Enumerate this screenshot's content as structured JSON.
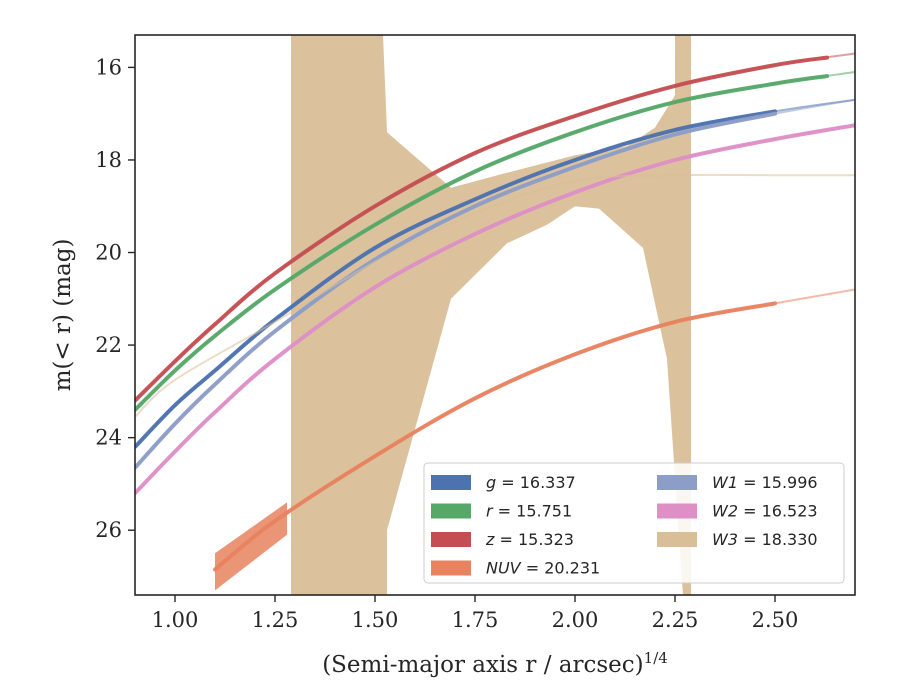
{
  "chart_data": {
    "type": "line",
    "xlabel": "(Semi-major axis r / arcsec)",
    "xlabel_sup": "1/4",
    "ylabel": "m(< r) (mag)",
    "xlim": [
      0.9,
      2.7
    ],
    "ylim": [
      27.4,
      15.3
    ],
    "y_inverted": true,
    "xticks": [
      1.0,
      1.25,
      1.5,
      1.75,
      2.0,
      2.25,
      2.5
    ],
    "xtick_labels": [
      "1.00",
      "1.25",
      "1.50",
      "1.75",
      "2.00",
      "2.25",
      "2.50"
    ],
    "yticks": [
      16,
      18,
      20,
      22,
      24,
      26
    ],
    "ytick_labels": [
      "16",
      "18",
      "20",
      "22",
      "24",
      "26"
    ],
    "grid": false,
    "legend": {
      "placement": "lower-right",
      "columns": 2,
      "entries": [
        {
          "label": "g = 16.337",
          "symbol": "g",
          "value": "16.337",
          "color": "#4c72b0"
        },
        {
          "label": "r = 15.751",
          "symbol": "r",
          "value": "15.751",
          "color": "#55a868"
        },
        {
          "label": "z = 15.323",
          "symbol": "z",
          "value": "15.323",
          "color": "#c44e52"
        },
        {
          "label": "NUV = 20.231",
          "symbol": "NUV",
          "value": "20.231",
          "color": "#e8825f"
        },
        {
          "label": "W1 = 15.996",
          "symbol": "W1",
          "value": "15.996",
          "color": "#8c9dc7"
        },
        {
          "label": "W2 = 16.523",
          "symbol": "W2",
          "value": "16.523",
          "color": "#dd8fc6"
        },
        {
          "label": "W3 = 18.330",
          "symbol": "W3",
          "value": "18.330",
          "color": "#d9bf97"
        }
      ]
    },
    "series": [
      {
        "name": "g",
        "color": "#4c72b0",
        "points": [
          [
            0.9,
            24.2
          ],
          [
            1.0,
            23.3
          ],
          [
            1.1,
            22.55
          ],
          [
            1.25,
            21.45
          ],
          [
            1.5,
            19.9
          ],
          [
            1.75,
            18.85
          ],
          [
            2.0,
            18.0
          ],
          [
            2.25,
            17.35
          ],
          [
            2.5,
            16.95
          ],
          [
            2.7,
            16.7
          ]
        ],
        "thick_until": 2.5
      },
      {
        "name": "r",
        "color": "#55a868",
        "points": [
          [
            0.9,
            23.4
          ],
          [
            1.0,
            22.55
          ],
          [
            1.1,
            21.8
          ],
          [
            1.25,
            20.8
          ],
          [
            1.5,
            19.4
          ],
          [
            1.75,
            18.25
          ],
          [
            2.0,
            17.4
          ],
          [
            2.25,
            16.75
          ],
          [
            2.5,
            16.35
          ],
          [
            2.7,
            16.1
          ]
        ],
        "thick_until": 2.63
      },
      {
        "name": "z",
        "color": "#c44e52",
        "points": [
          [
            0.9,
            23.2
          ],
          [
            1.0,
            22.35
          ],
          [
            1.1,
            21.55
          ],
          [
            1.25,
            20.45
          ],
          [
            1.5,
            19.0
          ],
          [
            1.75,
            17.85
          ],
          [
            2.0,
            17.05
          ],
          [
            2.25,
            16.4
          ],
          [
            2.5,
            15.95
          ],
          [
            2.7,
            15.7
          ]
        ],
        "thick_until": 2.63
      },
      {
        "name": "NUV",
        "color": "#e8825f",
        "points": [
          [
            1.1,
            26.85
          ],
          [
            1.25,
            25.8
          ],
          [
            1.5,
            24.4
          ],
          [
            1.75,
            23.15
          ],
          [
            2.0,
            22.2
          ],
          [
            2.25,
            21.5
          ],
          [
            2.5,
            21.1
          ],
          [
            2.7,
            20.8
          ]
        ],
        "thick_until": 2.5
      },
      {
        "name": "W1",
        "color": "#8c9dc7",
        "points": [
          [
            0.9,
            24.65
          ],
          [
            1.0,
            23.7
          ],
          [
            1.1,
            22.85
          ],
          [
            1.25,
            21.7
          ],
          [
            1.5,
            20.15
          ],
          [
            1.75,
            19.0
          ],
          [
            2.0,
            18.15
          ],
          [
            2.25,
            17.45
          ],
          [
            2.5,
            17.0
          ],
          [
            2.7,
            16.7
          ]
        ],
        "thick_until": 2.5
      },
      {
        "name": "W2",
        "color": "#dd8fc6",
        "points": [
          [
            0.9,
            25.2
          ],
          [
            1.0,
            24.3
          ],
          [
            1.1,
            23.45
          ],
          [
            1.25,
            22.3
          ],
          [
            1.5,
            20.75
          ],
          [
            1.75,
            19.6
          ],
          [
            2.0,
            18.7
          ],
          [
            2.25,
            18.0
          ],
          [
            2.5,
            17.55
          ],
          [
            2.7,
            17.25
          ]
        ],
        "thick_until": 2.7
      },
      {
        "name": "W3",
        "color": "#d9bf97",
        "points": [
          [
            0.9,
            23.55
          ],
          [
            1.0,
            22.75
          ],
          [
            1.25,
            21.5
          ],
          [
            1.5,
            20.2
          ],
          [
            1.75,
            19.15
          ],
          [
            2.0,
            18.45
          ],
          [
            2.25,
            18.33
          ],
          [
            2.5,
            18.33
          ],
          [
            2.7,
            18.33
          ]
        ],
        "thick_until": 0.9
      }
    ],
    "bands": [
      {
        "name": "NUV",
        "color": "#e8825f",
        "opacity": 0.85,
        "upper": [
          [
            1.1,
            26.5
          ],
          [
            1.28,
            25.4
          ]
        ],
        "lower": [
          [
            1.1,
            27.3
          ],
          [
            1.28,
            26.1
          ]
        ]
      },
      {
        "name": "W3",
        "color": "#d9bf97",
        "opacity": 0.95,
        "upper": [
          [
            1.29,
            15.3
          ],
          [
            1.52,
            15.3
          ],
          [
            1.53,
            17.4
          ],
          [
            1.69,
            18.6
          ],
          [
            1.82,
            18.3
          ],
          [
            2.0,
            17.9
          ],
          [
            2.13,
            17.7
          ],
          [
            2.2,
            17.3
          ],
          [
            2.25,
            16.6
          ],
          [
            2.25,
            15.3
          ],
          [
            2.29,
            15.3
          ]
        ],
        "lower": [
          [
            1.29,
            27.4
          ],
          [
            1.53,
            27.4
          ],
          [
            1.53,
            26.0
          ],
          [
            1.69,
            21.0
          ],
          [
            1.83,
            19.8
          ],
          [
            1.93,
            19.4
          ],
          [
            2.0,
            19.0
          ],
          [
            2.06,
            19.05
          ],
          [
            2.17,
            19.9
          ],
          [
            2.23,
            22.3
          ],
          [
            2.27,
            27.4
          ],
          [
            2.29,
            27.4
          ]
        ]
      }
    ]
  }
}
